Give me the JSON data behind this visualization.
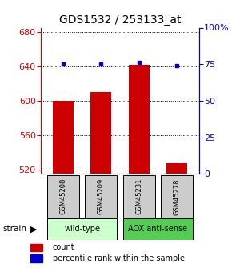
{
  "title": "GDS1532 / 253133_at",
  "samples": [
    "GSM45208",
    "GSM45209",
    "GSM45231",
    "GSM45278"
  ],
  "counts": [
    600,
    610,
    642,
    527
  ],
  "percentiles": [
    75,
    75,
    76,
    74
  ],
  "ylim_left": [
    515,
    685
  ],
  "ylim_right": [
    0,
    100
  ],
  "yticks_left": [
    520,
    560,
    600,
    640,
    680
  ],
  "yticks_right": [
    0,
    25,
    50,
    75,
    100
  ],
  "bar_color": "#cc0000",
  "dot_color": "#0000cc",
  "bar_width": 0.55,
  "groups": [
    {
      "label": "wild-type",
      "indices": [
        0,
        1
      ],
      "color": "#ccffcc"
    },
    {
      "label": "AOX anti-sense",
      "indices": [
        2,
        3
      ],
      "color": "#55cc55"
    }
  ],
  "strain_label": "strain",
  "legend_count_label": "count",
  "legend_percentile_label": "percentile rank within the sample",
  "left_axis_color": "#cc0000",
  "right_axis_color": "#0000cc",
  "sample_box_color": "#cccccc",
  "title_fontsize": 10,
  "tick_fontsize": 8,
  "sample_fontsize": 6,
  "group_fontsize": 7,
  "legend_fontsize": 7
}
